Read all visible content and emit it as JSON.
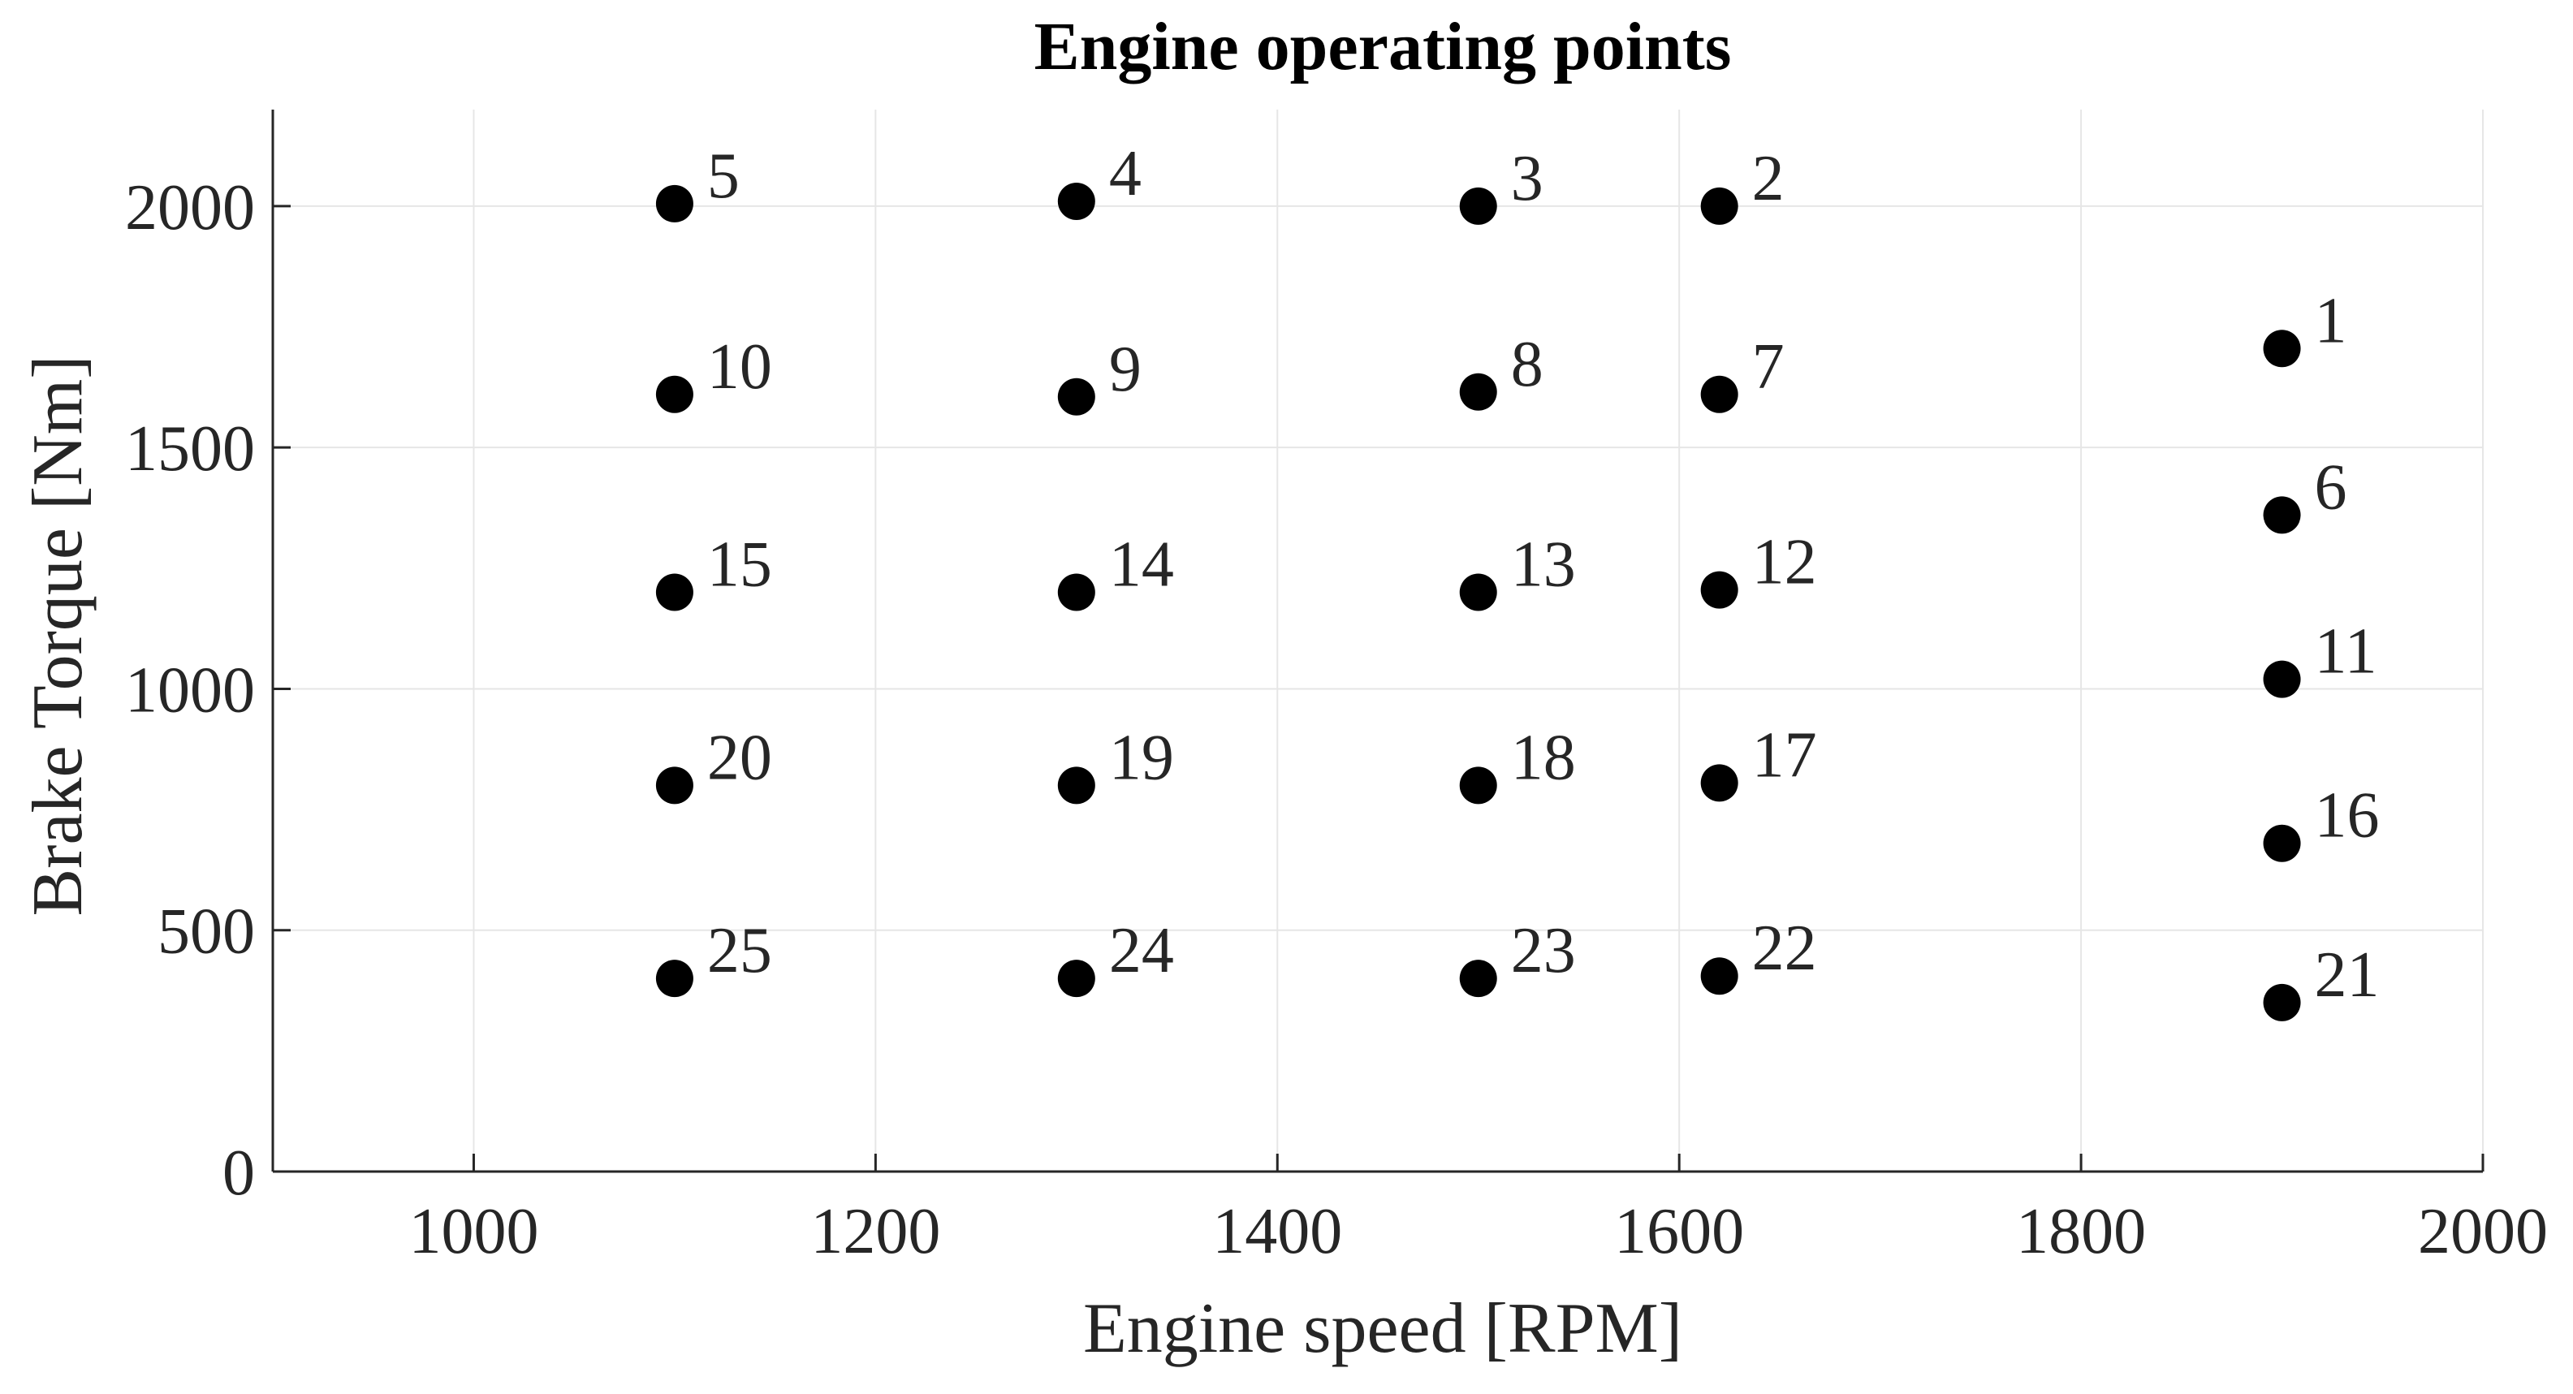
{
  "chart_data": {
    "type": "scatter",
    "title": "Engine operating points",
    "xlabel": "Engine speed [RPM]",
    "ylabel": "Brake Torque [Nm]",
    "xlim": [
      900,
      2000
    ],
    "ylim": [
      0,
      2200
    ],
    "xticks": [
      1000,
      1200,
      1400,
      1600,
      1800,
      2000
    ],
    "yticks": [
      0,
      500,
      1000,
      1500,
      2000
    ],
    "grid": true,
    "marker_color": "#000000",
    "grid_color": "#e6e6e6",
    "axis_color": "#262626",
    "points": [
      {
        "label": "1",
        "x": 1900,
        "y": 1705
      },
      {
        "label": "2",
        "x": 1620,
        "y": 2000
      },
      {
        "label": "3",
        "x": 1500,
        "y": 2000
      },
      {
        "label": "4",
        "x": 1300,
        "y": 2010
      },
      {
        "label": "5",
        "x": 1100,
        "y": 2005
      },
      {
        "label": "6",
        "x": 1900,
        "y": 1360
      },
      {
        "label": "7",
        "x": 1620,
        "y": 1610
      },
      {
        "label": "8",
        "x": 1500,
        "y": 1615
      },
      {
        "label": "9",
        "x": 1300,
        "y": 1605
      },
      {
        "label": "10",
        "x": 1100,
        "y": 1610
      },
      {
        "label": "11",
        "x": 1900,
        "y": 1020
      },
      {
        "label": "12",
        "x": 1620,
        "y": 1205
      },
      {
        "label": "13",
        "x": 1500,
        "y": 1200
      },
      {
        "label": "14",
        "x": 1300,
        "y": 1200
      },
      {
        "label": "15",
        "x": 1100,
        "y": 1200
      },
      {
        "label": "16",
        "x": 1900,
        "y": 680
      },
      {
        "label": "17",
        "x": 1620,
        "y": 805
      },
      {
        "label": "18",
        "x": 1500,
        "y": 800
      },
      {
        "label": "19",
        "x": 1300,
        "y": 800
      },
      {
        "label": "20",
        "x": 1100,
        "y": 800
      },
      {
        "label": "21",
        "x": 1900,
        "y": 350
      },
      {
        "label": "22",
        "x": 1620,
        "y": 405
      },
      {
        "label": "23",
        "x": 1500,
        "y": 400
      },
      {
        "label": "24",
        "x": 1300,
        "y": 400
      },
      {
        "label": "25",
        "x": 1100,
        "y": 400
      }
    ]
  }
}
